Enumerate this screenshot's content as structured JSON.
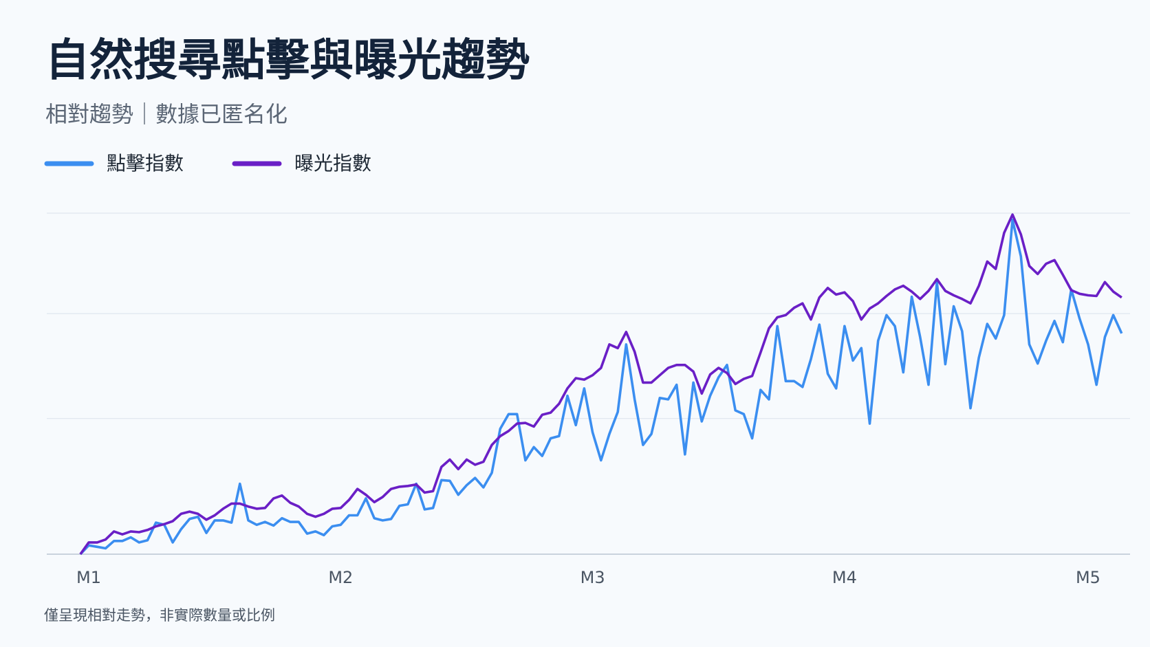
{
  "chart_data": {
    "type": "line",
    "title": "自然搜尋點擊與曝光趨勢",
    "subtitle": "相對趨勢｜數據已匿名化",
    "note": "僅呈現相對走勢，非實際數量或比例",
    "x": [
      0,
      1,
      2,
      3,
      4,
      5,
      6,
      7,
      8,
      9,
      10,
      11,
      12,
      13,
      14,
      15,
      16,
      17,
      18,
      19,
      20,
      21,
      22,
      23,
      24,
      25,
      26,
      27,
      28,
      29,
      30,
      31,
      32,
      33,
      34,
      35,
      36,
      37,
      38,
      39,
      40,
      41,
      42,
      43,
      44,
      45,
      46,
      47,
      48,
      49,
      50,
      51,
      52,
      53,
      54,
      55,
      56,
      57,
      58,
      59,
      60,
      61,
      62,
      63,
      64,
      65,
      66,
      67,
      68,
      69,
      70,
      71,
      72,
      73,
      74,
      75,
      76,
      77,
      78,
      79,
      80,
      81,
      82,
      83,
      84,
      85,
      86,
      87,
      88,
      89,
      90,
      91,
      92,
      93,
      94,
      95,
      96,
      97,
      98,
      99,
      100,
      101,
      102,
      103,
      104,
      105,
      106,
      107,
      108,
      109,
      110,
      111,
      112,
      113,
      114,
      115,
      116,
      117,
      118,
      119,
      120,
      121,
      122,
      123,
      124
    ],
    "series": [
      {
        "name": "點擊指數",
        "color": "#3b8ef0",
        "values": [
          0,
          12,
          10,
          8,
          18,
          18,
          23,
          16,
          19,
          43,
          40,
          16,
          34,
          48,
          51,
          29,
          46,
          46,
          43,
          96,
          46,
          40,
          44,
          39,
          49,
          44,
          44,
          28,
          31,
          26,
          38,
          40,
          53,
          53,
          76,
          49,
          46,
          48,
          66,
          68,
          96,
          61,
          63,
          101,
          100,
          81,
          94,
          104,
          91,
          111,
          171,
          191,
          191,
          128,
          146,
          134,
          158,
          161,
          216,
          176,
          226,
          166,
          128,
          164,
          194,
          286,
          211,
          149,
          164,
          213,
          211,
          231,
          136,
          234,
          181,
          216,
          241,
          258,
          196,
          191,
          158,
          224,
          211,
          311,
          236,
          236,
          228,
          266,
          313,
          246,
          226,
          311,
          264,
          281,
          178,
          291,
          326,
          311,
          248,
          351,
          296,
          231,
          371,
          259,
          338,
          304,
          199,
          268,
          314,
          294,
          326,
          456,
          406,
          286,
          260,
          291,
          318,
          289,
          361,
          321,
          286,
          231,
          296,
          326,
          301
        ]
      },
      {
        "name": "曝光指數",
        "color": "#6a1fc6",
        "values": [
          0,
          16,
          16,
          20,
          31,
          27,
          31,
          30,
          33,
          38,
          41,
          45,
          55,
          58,
          55,
          47,
          53,
          62,
          69,
          69,
          65,
          62,
          63,
          76,
          80,
          70,
          65,
          55,
          51,
          55,
          62,
          63,
          74,
          89,
          81,
          71,
          78,
          89,
          92,
          93,
          95,
          84,
          86,
          119,
          129,
          116,
          129,
          122,
          126,
          149,
          161,
          168,
          178,
          179,
          174,
          190,
          193,
          205,
          226,
          240,
          238,
          244,
          254,
          286,
          281,
          303,
          276,
          234,
          234,
          244,
          254,
          258,
          258,
          249,
          219,
          245,
          254,
          247,
          232,
          239,
          243,
          275,
          308,
          323,
          326,
          336,
          342,
          320,
          350,
          363,
          354,
          357,
          345,
          320,
          335,
          342,
          352,
          361,
          366,
          358,
          348,
          359,
          375,
          359,
          353,
          348,
          342,
          366,
          399,
          389,
          438,
          463,
          436,
          393,
          382,
          396,
          401,
          381,
          360,
          355,
          353,
          352,
          371,
          358,
          350
        ]
      }
    ],
    "xlim": [
      -4,
      125
    ],
    "xticks": [
      {
        "value": 1,
        "label": "M1"
      },
      {
        "value": 31,
        "label": "M2"
      },
      {
        "value": 61,
        "label": "M3"
      },
      {
        "value": 91,
        "label": "M4"
      },
      {
        "value": 120,
        "label": "M5"
      }
    ],
    "ylim": [
      0,
      465
    ],
    "yticks": [
      0,
      185,
      328,
      465
    ],
    "grid": true
  }
}
